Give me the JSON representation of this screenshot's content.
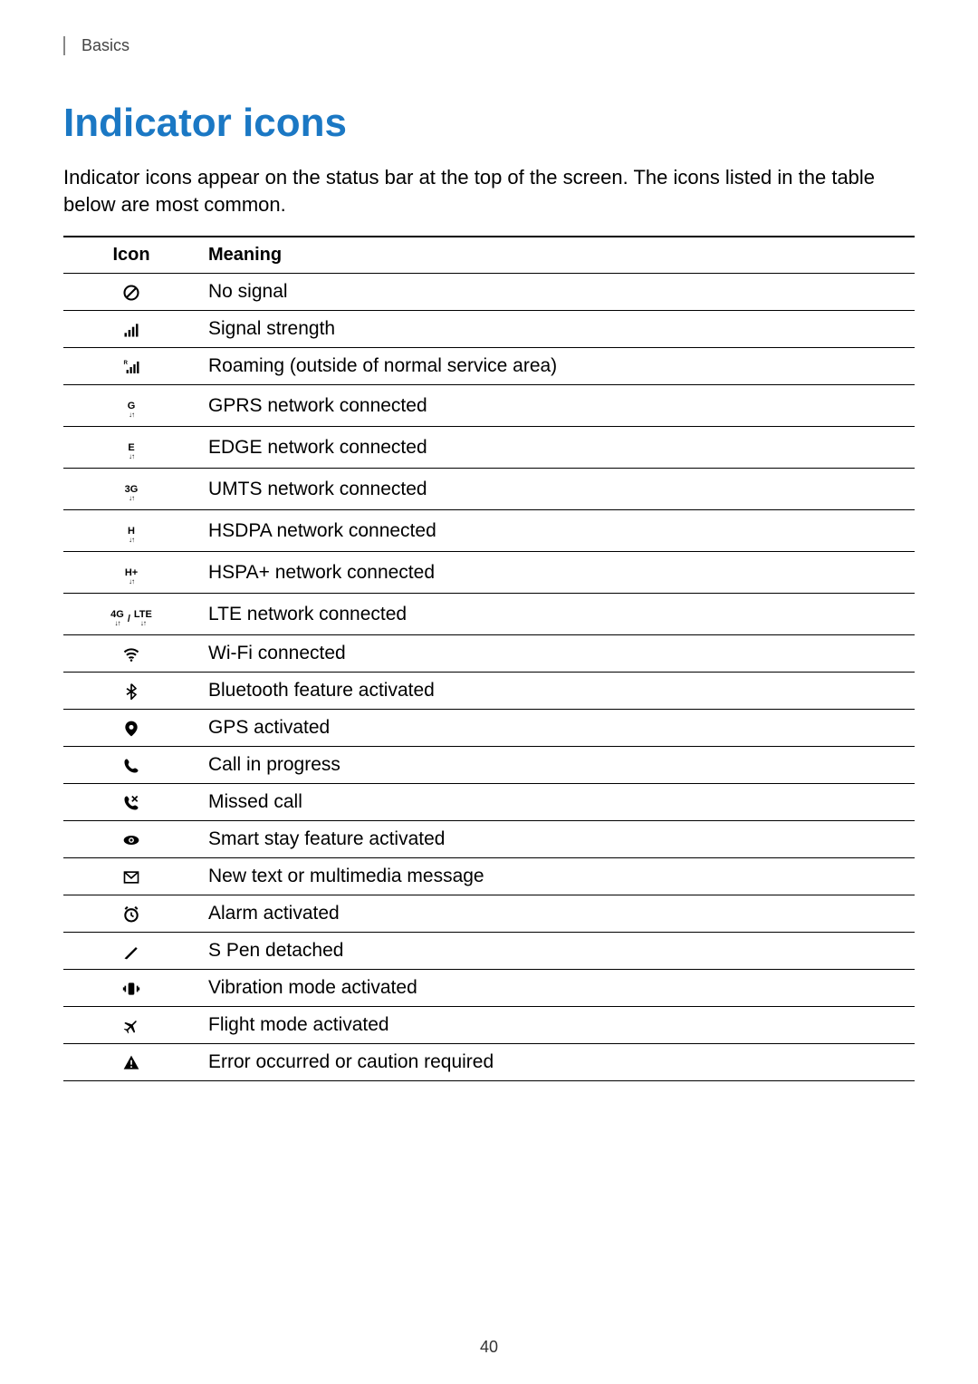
{
  "breadcrumb": "Basics",
  "title": "Indicator icons",
  "intro": "Indicator icons appear on the status bar at the top of the screen. The icons listed in the table below are most common.",
  "table": {
    "headers": {
      "icon": "Icon",
      "meaning": "Meaning"
    },
    "rows": [
      {
        "icon_key": "no-signal",
        "meaning": "No signal"
      },
      {
        "icon_key": "signal",
        "meaning": "Signal strength"
      },
      {
        "icon_key": "roaming",
        "meaning": "Roaming (outside of normal service area)"
      },
      {
        "icon_key": "gprs",
        "label": "G",
        "meaning": "GPRS network connected"
      },
      {
        "icon_key": "edge",
        "label": "E",
        "meaning": "EDGE network connected"
      },
      {
        "icon_key": "umts",
        "label": "3G",
        "meaning": "UMTS network connected"
      },
      {
        "icon_key": "hsdpa",
        "label": "H",
        "meaning": "HSDPA network connected"
      },
      {
        "icon_key": "hspap",
        "label": "H+",
        "meaning": "HSPA+ network connected"
      },
      {
        "icon_key": "lte",
        "label_a": "4G",
        "label_b": "LTE",
        "sep": "/",
        "meaning": "LTE network connected"
      },
      {
        "icon_key": "wifi",
        "meaning": "Wi-Fi connected"
      },
      {
        "icon_key": "bluetooth",
        "meaning": "Bluetooth feature activated"
      },
      {
        "icon_key": "gps",
        "meaning": "GPS activated"
      },
      {
        "icon_key": "call",
        "meaning": "Call in progress"
      },
      {
        "icon_key": "missed",
        "meaning": "Missed call"
      },
      {
        "icon_key": "smartstay",
        "meaning": "Smart stay feature activated"
      },
      {
        "icon_key": "message",
        "meaning": "New text or multimedia message"
      },
      {
        "icon_key": "alarm",
        "meaning": "Alarm activated"
      },
      {
        "icon_key": "spen",
        "meaning": "S Pen detached"
      },
      {
        "icon_key": "vibration",
        "meaning": "Vibration mode activated"
      },
      {
        "icon_key": "flight",
        "meaning": "Flight mode activated"
      },
      {
        "icon_key": "error",
        "meaning": "Error occurred or caution required"
      }
    ]
  },
  "page_number": "40",
  "colors": {
    "title": "#1b78c4",
    "text": "#000000",
    "border": "#000000",
    "breadcrumb": "#444444"
  }
}
